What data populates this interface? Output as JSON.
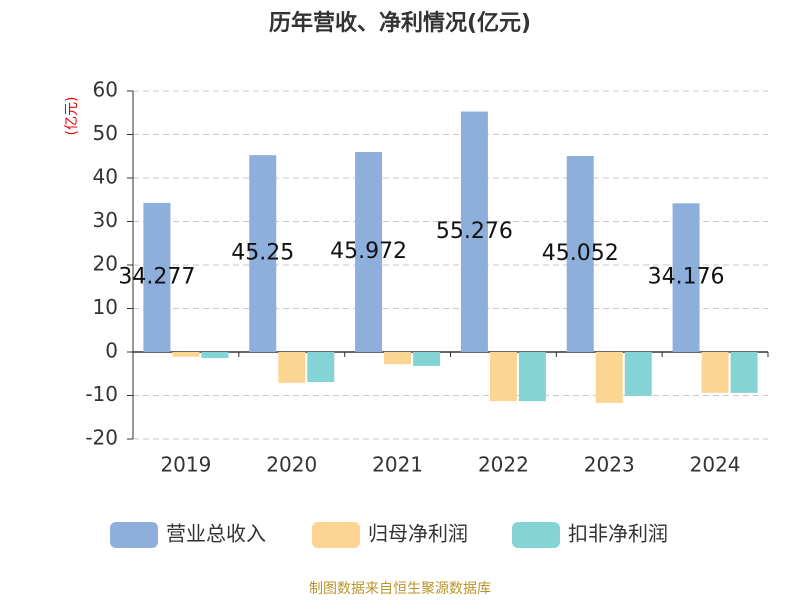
{
  "chart_data": {
    "type": "bar",
    "title": "历年营收、净利情况(亿元)",
    "y_axis_label": "(亿元)",
    "categories": [
      "2019",
      "2020",
      "2021",
      "2022",
      "2023",
      "2024"
    ],
    "series": [
      {
        "name": "营业总收入",
        "color": "#8eaedb",
        "values": [
          34.277,
          45.25,
          45.972,
          55.276,
          45.052,
          34.176
        ]
      },
      {
        "name": "归母净利润",
        "color": "#fdd592",
        "values": [
          -1.1,
          -7.1,
          -2.8,
          -11.3,
          -11.7,
          -9.4
        ]
      },
      {
        "name": "扣非净利润",
        "color": "#84d4d6",
        "values": [
          -1.4,
          -6.9,
          -3.2,
          -11.3,
          -10.1,
          -9.4
        ]
      }
    ],
    "ylim": [
      -20,
      60
    ],
    "yticks": [
      -20,
      -10,
      0,
      10,
      20,
      30,
      40,
      50,
      60
    ],
    "grid": true,
    "source": "制图数据来自恒生聚源数据库"
  }
}
